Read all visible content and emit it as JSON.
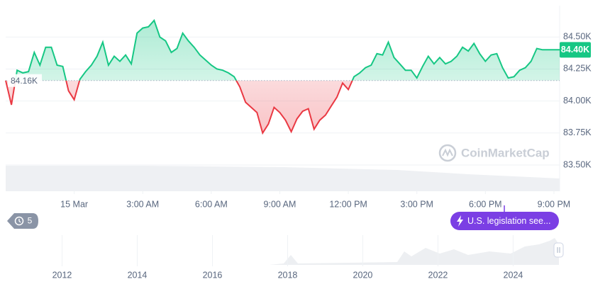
{
  "chart_data": {
    "type": "line",
    "x": [
      -3,
      -2.75,
      -2.5,
      -2.25,
      -2,
      -1.75,
      -1.5,
      -1.25,
      -1,
      -0.75,
      -0.5,
      -0.25,
      0,
      0.25,
      0.5,
      0.75,
      1,
      1.25,
      1.5,
      1.75,
      2,
      2.25,
      2.5,
      2.75,
      3,
      3.25,
      3.5,
      3.75,
      4,
      4.25,
      4.5,
      4.75,
      5,
      5.25,
      5.5,
      5.75,
      6,
      6.25,
      6.5,
      6.75,
      7,
      7.25,
      7.5,
      7.75,
      8,
      8.25,
      8.5,
      8.75,
      9,
      9.25,
      9.5,
      9.75,
      10,
      10.25,
      10.5,
      10.75,
      11,
      11.25,
      11.5,
      11.75,
      12,
      12.25,
      12.5,
      12.75,
      13,
      13.25,
      13.5,
      13.75,
      14,
      14.25,
      14.5,
      14.75,
      15,
      15.25,
      15.5,
      15.75,
      16,
      16.25,
      16.5,
      16.75,
      17,
      17.25,
      17.5,
      17.75,
      18,
      18.25,
      18.5,
      18.75,
      19,
      19.25,
      19.5,
      19.75,
      20,
      20.25,
      20.5,
      20.75,
      21,
      21.25
    ],
    "values": [
      84160,
      83970,
      84240,
      84220,
      84230,
      84380,
      84280,
      84420,
      84420,
      84280,
      84270,
      84080,
      84010,
      84170,
      84230,
      84280,
      84350,
      84460,
      84280,
      84350,
      84310,
      84360,
      84290,
      84530,
      84570,
      84580,
      84630,
      84500,
      84470,
      84380,
      84410,
      84530,
      84470,
      84420,
      84360,
      84320,
      84280,
      84250,
      84240,
      84220,
      84190,
      84110,
      83990,
      83950,
      83910,
      83750,
      83820,
      83950,
      83910,
      83850,
      83760,
      83860,
      83920,
      83940,
      83780,
      83850,
      83890,
      83960,
      84030,
      84140,
      84090,
      84190,
      84220,
      84260,
      84280,
      84370,
      84360,
      84460,
      84340,
      84290,
      84240,
      84240,
      84180,
      84270,
      84350,
      84290,
      84340,
      84290,
      84310,
      84350,
      84420,
      84390,
      84450,
      84370,
      84310,
      84360,
      84370,
      84260,
      84180,
      84190,
      84240,
      84260,
      84310,
      84410,
      84400,
      84400,
      84400,
      84400
    ],
    "colors": {
      "up": "#16c784",
      "down": "#ea3943"
    },
    "xlim": [
      -3,
      21.25
    ],
    "xticks": [
      {
        "value": 0,
        "label": "15 Mar"
      },
      {
        "value": 3,
        "label": "3:00 AM"
      },
      {
        "value": 6,
        "label": "6:00 AM"
      },
      {
        "value": 9,
        "label": "9:00 AM"
      },
      {
        "value": 12,
        "label": "12:00 PM"
      },
      {
        "value": 15,
        "label": "3:00 PM"
      },
      {
        "value": 18,
        "label": "6:00 PM"
      },
      {
        "value": 21,
        "label": "9:00 PM"
      }
    ],
    "ylim": [
      83295,
      84745
    ],
    "yticks": [
      {
        "value": 83500,
        "label": "83.50K"
      },
      {
        "value": 83750,
        "label": "83.75K"
      },
      {
        "value": 84000,
        "label": "84.00K"
      },
      {
        "value": 84250,
        "label": "84.25K"
      },
      {
        "value": 84500,
        "label": "84.50K"
      }
    ],
    "grid": true,
    "baseline": {
      "value": 84160,
      "label": "84.16K"
    },
    "current": {
      "value": 84400,
      "label": "84.40K"
    },
    "watermark": "CoinMarketCap",
    "history_count": 5,
    "event": "U.S. legislation see...",
    "navigator": {
      "xlim": [
        2010.5,
        2025.35
      ],
      "xticks": [
        2012,
        2014,
        2016,
        2018,
        2020,
        2022,
        2024
      ]
    }
  }
}
